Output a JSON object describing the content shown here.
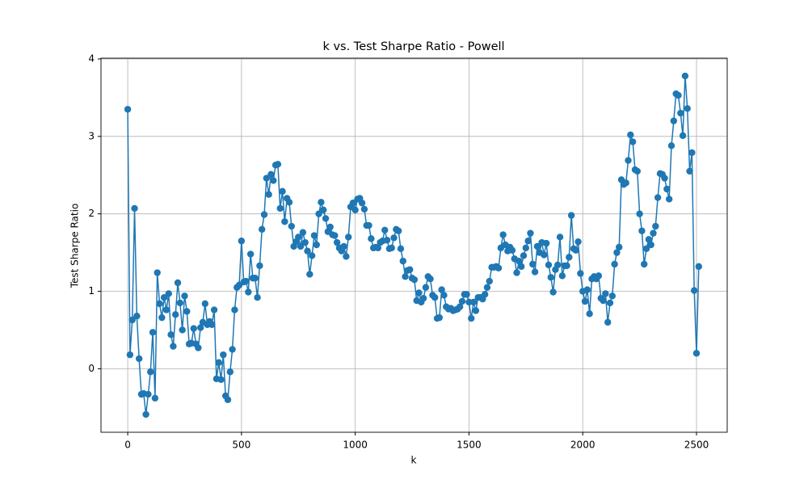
{
  "chart_data": {
    "type": "line",
    "title": "k vs. Test Sharpe Ratio - Powell",
    "x_label": "k",
    "y_label": "Test Sharpe Ratio",
    "x": [
      0,
      10,
      20,
      30,
      40,
      50,
      60,
      70,
      80,
      90,
      100,
      110,
      120,
      130,
      140,
      150,
      160,
      170,
      180,
      190,
      200,
      210,
      220,
      230,
      240,
      250,
      260,
      270,
      280,
      290,
      300,
      310,
      320,
      330,
      340,
      350,
      360,
      370,
      380,
      390,
      400,
      410,
      420,
      430,
      440,
      450,
      460,
      470,
      480,
      490,
      500,
      510,
      520,
      530,
      540,
      550,
      560,
      570,
      580,
      590,
      600,
      610,
      620,
      630,
      640,
      650,
      660,
      670,
      680,
      690,
      700,
      710,
      720,
      730,
      740,
      750,
      760,
      770,
      780,
      790,
      800,
      810,
      820,
      830,
      840,
      850,
      860,
      870,
      880,
      890,
      900,
      910,
      920,
      930,
      940,
      950,
      960,
      970,
      980,
      990,
      1000,
      1010,
      1020,
      1030,
      1040,
      1050,
      1060,
      1070,
      1080,
      1090,
      1100,
      1110,
      1120,
      1130,
      1140,
      1150,
      1160,
      1170,
      1180,
      1190,
      1200,
      1210,
      1220,
      1230,
      1240,
      1250,
      1260,
      1270,
      1280,
      1290,
      1300,
      1310,
      1320,
      1330,
      1340,
      1350,
      1360,
      1370,
      1380,
      1390,
      1400,
      1410,
      1420,
      1430,
      1440,
      1450,
      1460,
      1470,
      1480,
      1490,
      1500,
      1510,
      1520,
      1530,
      1540,
      1550,
      1560,
      1570,
      1580,
      1590,
      1600,
      1610,
      1620,
      1630,
      1640,
      1650,
      1660,
      1670,
      1680,
      1690,
      1700,
      1710,
      1720,
      1730,
      1740,
      1750,
      1760,
      1770,
      1780,
      1790,
      1800,
      1810,
      1820,
      1830,
      1840,
      1850,
      1860,
      1870,
      1880,
      1890,
      1900,
      1910,
      1920,
      1930,
      1940,
      1950,
      1960,
      1970,
      1980,
      1990,
      2000,
      2010,
      2020,
      2030,
      2040,
      2050,
      2060,
      2070,
      2080,
      2090,
      2100,
      2110,
      2120,
      2130,
      2140,
      2150,
      2160,
      2170,
      2180,
      2190,
      2200,
      2210,
      2220,
      2230,
      2240,
      2250,
      2260,
      2270,
      2280,
      2290,
      2300,
      2310,
      2320,
      2330,
      2340,
      2350,
      2360,
      2370,
      2380,
      2390,
      2400,
      2410,
      2420,
      2430,
      2440,
      2450,
      2460,
      2470,
      2480,
      2490,
      2500,
      2510
    ],
    "values": [
      3.35,
      0.18,
      0.63,
      2.07,
      0.68,
      0.13,
      -0.33,
      -0.32,
      -0.59,
      -0.33,
      -0.04,
      0.47,
      -0.38,
      1.24,
      0.84,
      0.66,
      0.92,
      0.76,
      0.97,
      0.44,
      0.29,
      0.7,
      1.11,
      0.85,
      0.5,
      0.94,
      0.74,
      0.32,
      0.33,
      0.52,
      0.32,
      0.27,
      0.53,
      0.6,
      0.84,
      0.57,
      0.61,
      0.57,
      0.76,
      -0.13,
      0.08,
      -0.14,
      0.18,
      -0.35,
      -0.4,
      -0.04,
      0.25,
      0.76,
      1.05,
      1.08,
      1.65,
      1.12,
      1.13,
      0.99,
      1.48,
      1.17,
      1.17,
      0.92,
      1.33,
      1.8,
      1.99,
      2.46,
      2.25,
      2.51,
      2.43,
      2.63,
      2.64,
      2.07,
      2.29,
      1.9,
      2.2,
      2.15,
      1.84,
      1.58,
      1.64,
      1.7,
      1.58,
      1.76,
      1.63,
      1.52,
      1.22,
      1.46,
      1.72,
      1.6,
      2.0,
      2.15,
      2.05,
      1.94,
      1.77,
      1.83,
      1.73,
      1.72,
      1.63,
      1.56,
      1.52,
      1.58,
      1.45,
      1.7,
      2.09,
      2.14,
      2.05,
      2.19,
      2.2,
      2.14,
      2.06,
      1.85,
      1.85,
      1.68,
      1.56,
      1.57,
      1.56,
      1.63,
      1.65,
      1.79,
      1.66,
      1.55,
      1.56,
      1.69,
      1.8,
      1.78,
      1.55,
      1.39,
      1.19,
      1.27,
      1.28,
      1.17,
      1.15,
      0.88,
      0.98,
      0.86,
      0.91,
      1.05,
      1.19,
      1.16,
      0.95,
      0.92,
      0.65,
      0.66,
      1.02,
      0.95,
      0.8,
      0.77,
      0.78,
      0.75,
      0.76,
      0.77,
      0.8,
      0.87,
      0.96,
      0.96,
      0.86,
      0.65,
      0.86,
      0.75,
      0.92,
      0.92,
      0.9,
      0.96,
      1.05,
      1.13,
      1.31,
      1.31,
      1.32,
      1.3,
      1.56,
      1.73,
      1.6,
      1.52,
      1.57,
      1.53,
      1.42,
      1.24,
      1.39,
      1.32,
      1.46,
      1.56,
      1.65,
      1.75,
      1.35,
      1.25,
      1.58,
      1.5,
      1.63,
      1.47,
      1.62,
      1.34,
      1.18,
      0.99,
      1.28,
      1.34,
      1.7,
      1.2,
      1.33,
      1.33,
      1.44,
      1.98,
      1.55,
      1.53,
      1.64,
      1.23,
      1.0,
      0.87,
      1.02,
      0.71,
      1.16,
      1.19,
      1.16,
      1.2,
      0.91,
      0.88,
      0.97,
      0.6,
      0.85,
      0.94,
      1.35,
      1.5,
      1.57,
      2.44,
      2.38,
      2.4,
      2.69,
      3.02,
      2.93,
      2.57,
      2.55,
      2.0,
      1.78,
      1.35,
      1.55,
      1.67,
      1.6,
      1.75,
      1.84,
      2.21,
      2.52,
      2.51,
      2.46,
      2.32,
      2.19,
      2.88,
      3.2,
      3.55,
      3.53,
      3.3,
      3.01,
      3.78,
      3.36,
      2.55,
      2.79,
      1.01,
      0.2,
      1.32
    ],
    "color": "#1f77b4",
    "xlim": [
      -117.5,
      2635
    ],
    "ylim": [
      -0.82,
      4.01
    ],
    "xticks": [
      0,
      500,
      1000,
      1500,
      2000,
      2500
    ],
    "yticks": [
      0,
      1,
      2,
      3,
      4
    ],
    "grid": true
  }
}
